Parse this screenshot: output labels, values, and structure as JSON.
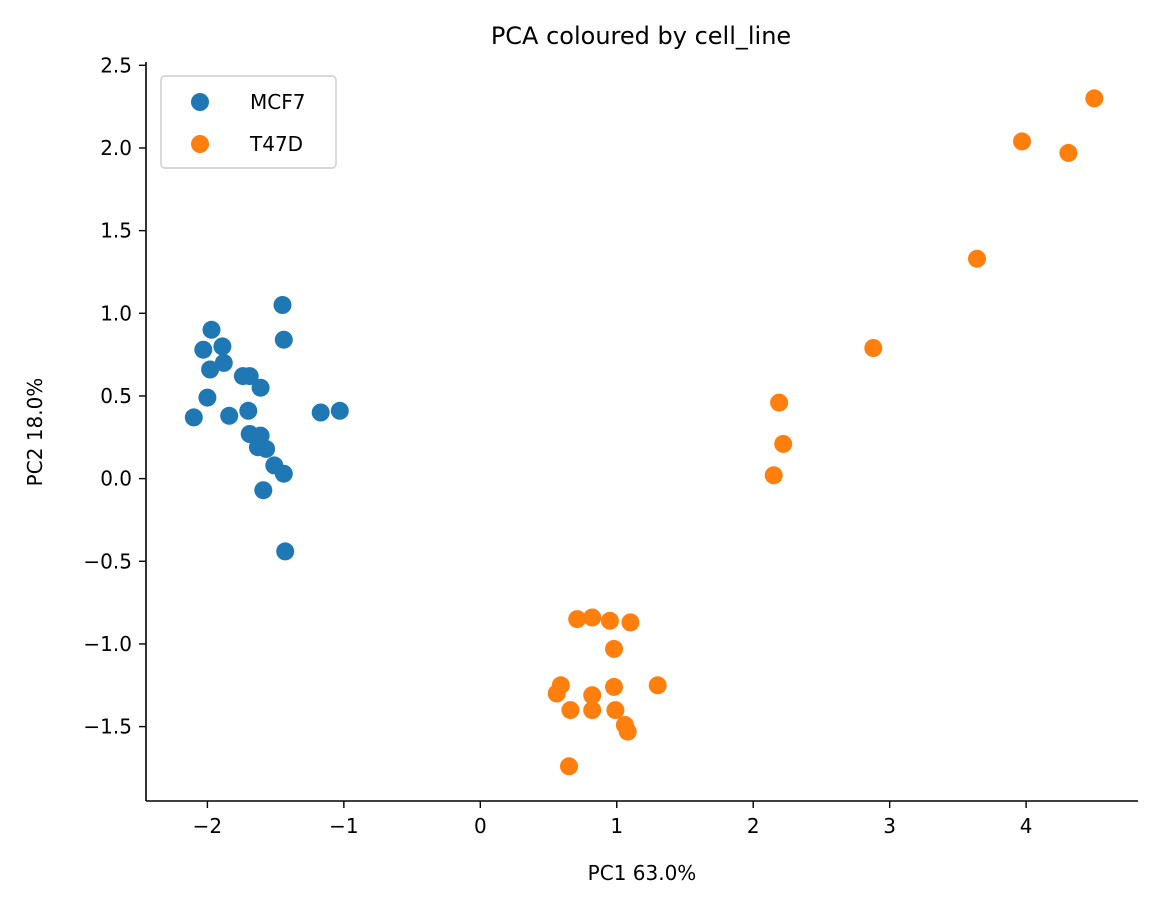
{
  "chart_data": {
    "type": "scatter",
    "title": "PCA coloured by cell_line",
    "xlabel": "PC1 63.0%",
    "ylabel": "PC2 18.0%",
    "xlim": [
      -2.45,
      4.82
    ],
    "ylim": [
      -1.95,
      2.52
    ],
    "x_ticks": [
      -2,
      -1,
      0,
      1,
      2,
      3,
      4
    ],
    "x_tick_labels": [
      "−2",
      "−1",
      "0",
      "1",
      "2",
      "3",
      "4"
    ],
    "y_ticks": [
      -1.5,
      -1.0,
      -0.5,
      0.0,
      0.5,
      1.0,
      1.5,
      2.0,
      2.5
    ],
    "y_tick_labels": [
      "−1.5",
      "−1.0",
      "−0.5",
      "0.0",
      "0.5",
      "1.0",
      "1.5",
      "2.0",
      "2.5"
    ],
    "grid": false,
    "legend_position": "top-left",
    "series": [
      {
        "name": "MCF7",
        "color": "#1f77b4",
        "points": [
          [
            -2.1,
            0.37
          ],
          [
            -2.03,
            0.78
          ],
          [
            -2.0,
            0.49
          ],
          [
            -1.98,
            0.66
          ],
          [
            -1.97,
            0.9
          ],
          [
            -1.89,
            0.8
          ],
          [
            -1.88,
            0.7
          ],
          [
            -1.84,
            0.38
          ],
          [
            -1.74,
            0.62
          ],
          [
            -1.69,
            0.62
          ],
          [
            -1.7,
            0.41
          ],
          [
            -1.69,
            0.27
          ],
          [
            -1.63,
            0.19
          ],
          [
            -1.61,
            0.26
          ],
          [
            -1.61,
            0.55
          ],
          [
            -1.57,
            0.18
          ],
          [
            -1.51,
            0.08
          ],
          [
            -1.45,
            1.05
          ],
          [
            -1.44,
            0.84
          ],
          [
            -1.44,
            0.03
          ],
          [
            -1.59,
            -0.07
          ],
          [
            -1.43,
            -0.44
          ],
          [
            -1.17,
            0.4
          ],
          [
            -1.03,
            0.41
          ]
        ]
      },
      {
        "name": "T47D",
        "color": "#ff7f0e",
        "points": [
          [
            0.71,
            -0.85
          ],
          [
            0.82,
            -0.84
          ],
          [
            0.95,
            -0.86
          ],
          [
            1.1,
            -0.87
          ],
          [
            0.98,
            -1.03
          ],
          [
            0.56,
            -1.3
          ],
          [
            0.59,
            -1.25
          ],
          [
            0.66,
            -1.4
          ],
          [
            0.82,
            -1.31
          ],
          [
            0.82,
            -1.4
          ],
          [
            0.98,
            -1.26
          ],
          [
            0.99,
            -1.4
          ],
          [
            1.06,
            -1.49
          ],
          [
            1.08,
            -1.53
          ],
          [
            1.3,
            -1.25
          ],
          [
            0.65,
            -1.74
          ],
          [
            2.15,
            0.02
          ],
          [
            2.22,
            0.21
          ],
          [
            2.19,
            0.46
          ],
          [
            2.88,
            0.79
          ],
          [
            3.64,
            1.33
          ],
          [
            3.97,
            2.04
          ],
          [
            4.31,
            1.97
          ],
          [
            4.5,
            2.3
          ]
        ]
      }
    ]
  }
}
